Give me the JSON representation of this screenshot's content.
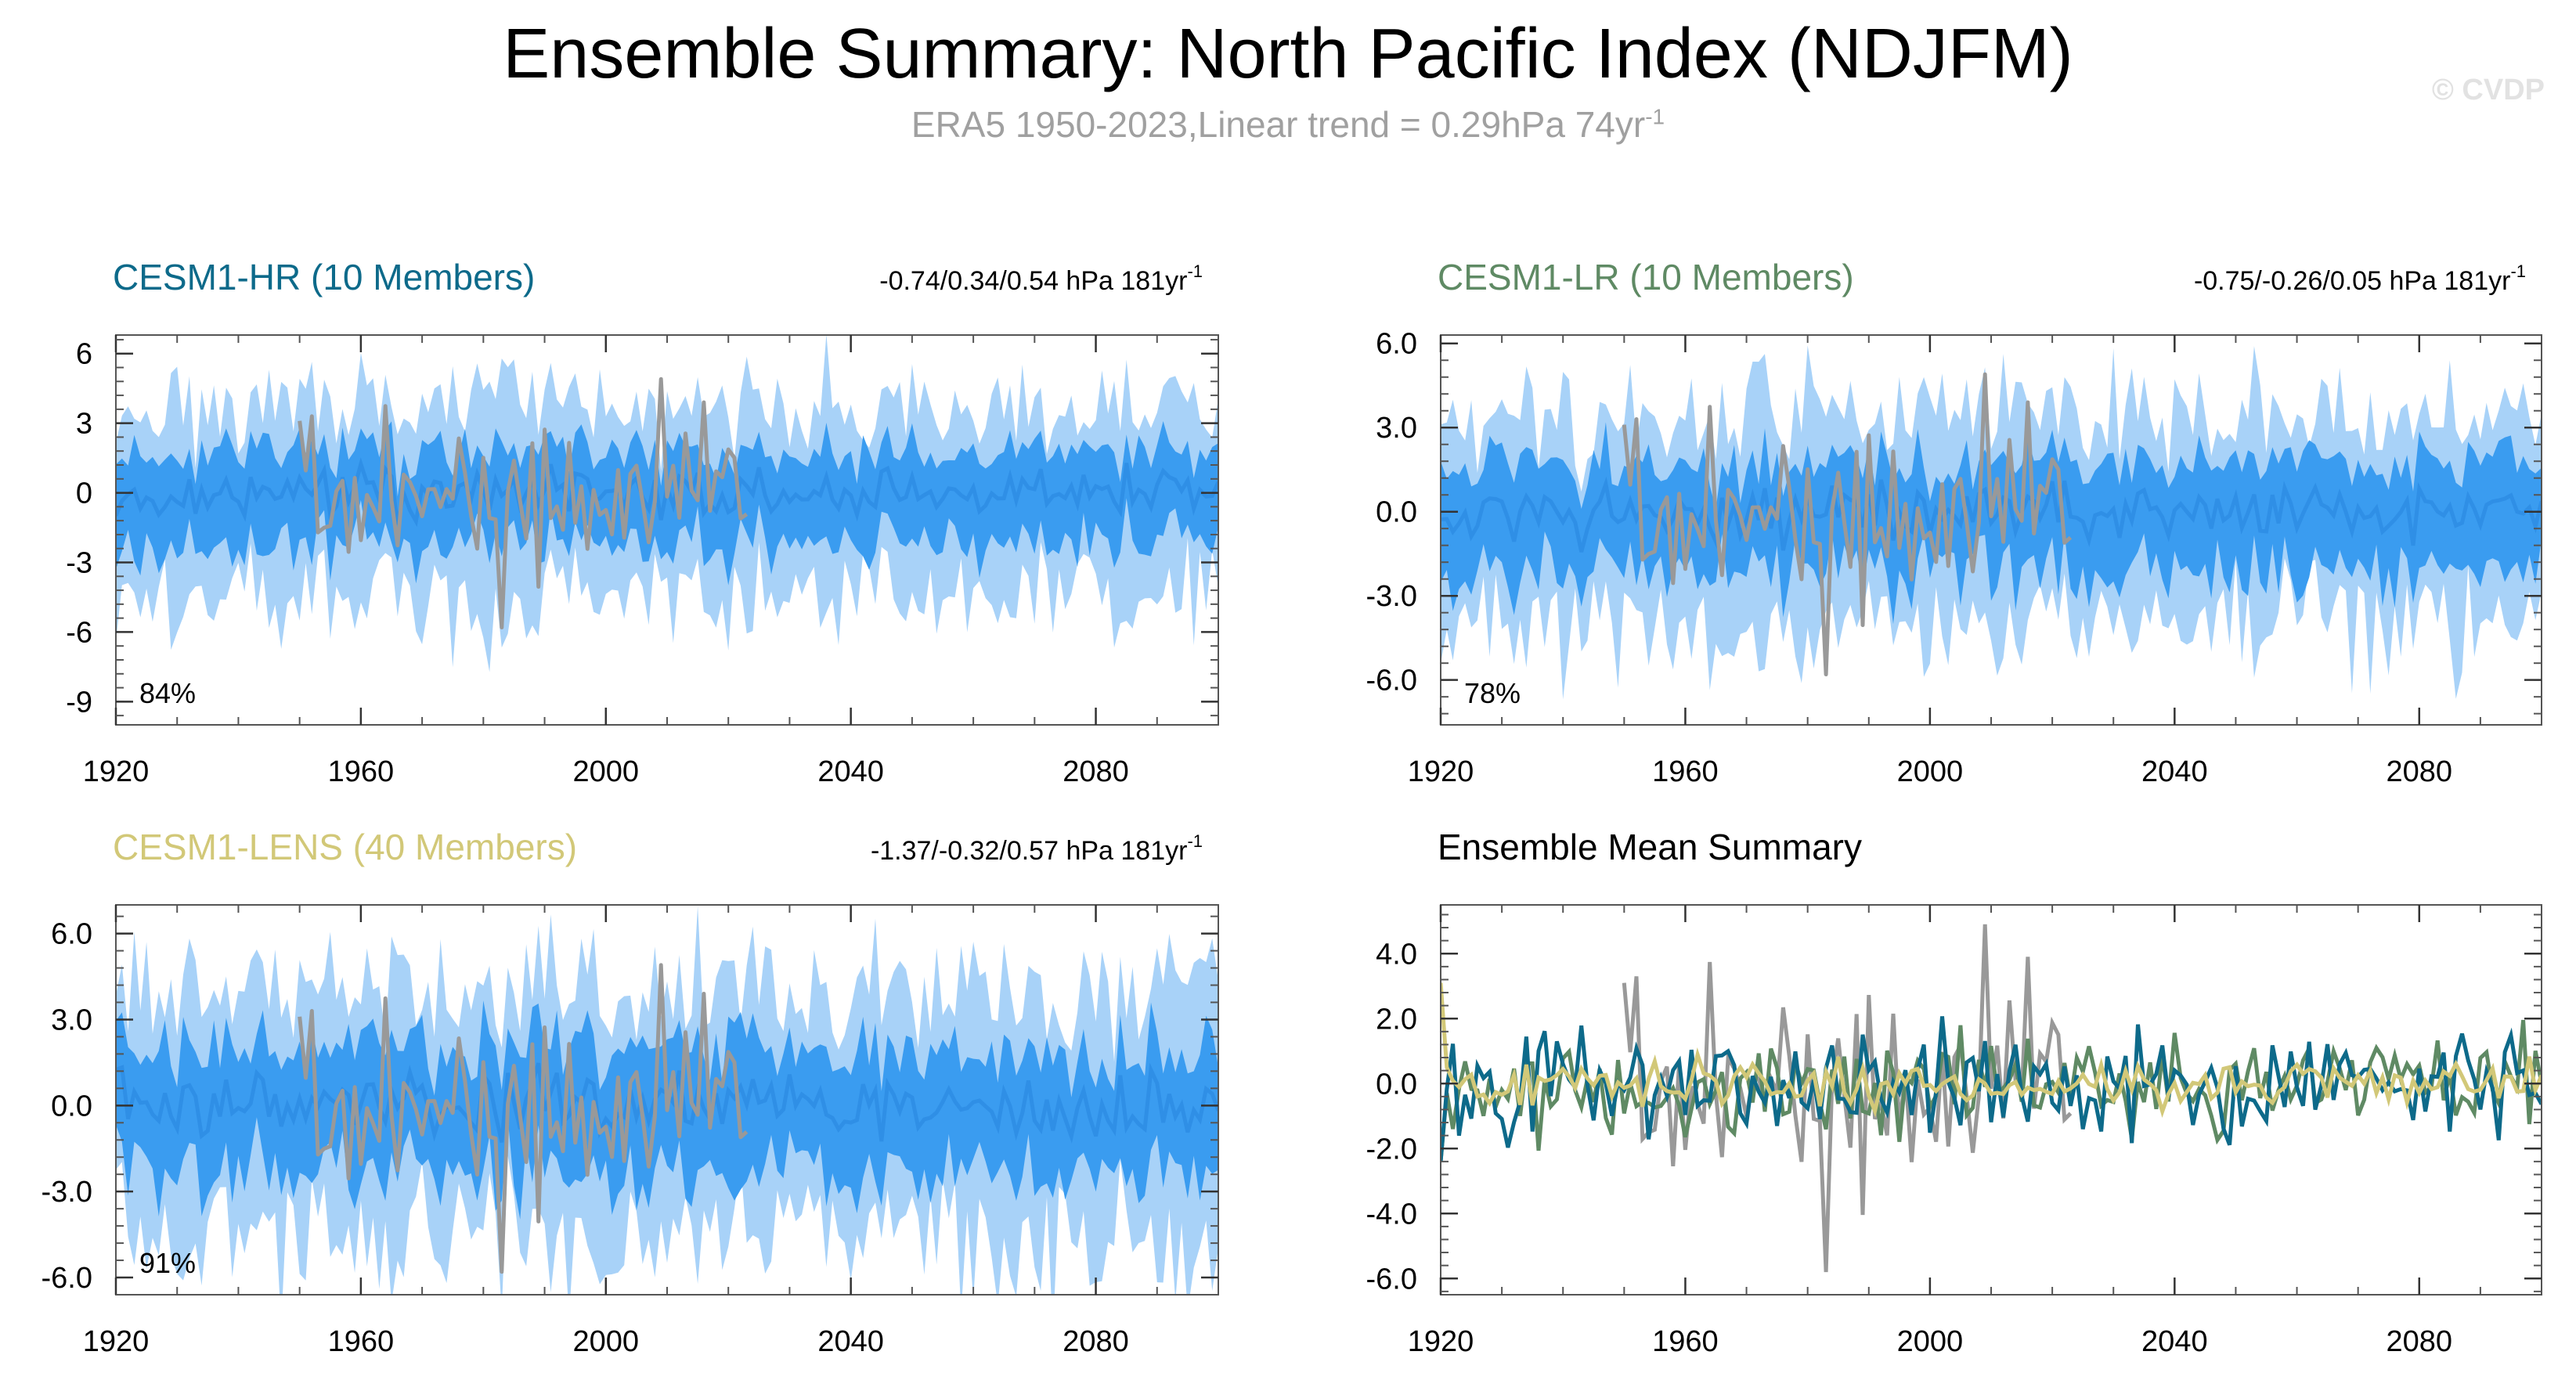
{
  "header": {
    "title": "Ensemble Summary: North Pacific Index (NDJFM)",
    "subtitle": "ERA5 1950-2023,Linear trend = 0.29hPa 74yr",
    "subtitle_sup": "-1",
    "watermark": "© CVDP"
  },
  "colors": {
    "band_outer": "#a8d2f8",
    "band_inner": "#3a9cf0",
    "ens_mean": "#2f8fe6",
    "obs": "#999999",
    "hr": "#0d6a8a",
    "lr": "#5f8a64",
    "lens": "#d2c878",
    "axis": "#222222"
  },
  "chart_data": [
    {
      "type": "area",
      "name": "CESM1-HR (10 Members)",
      "title": "CESM1-HR (10 Members)",
      "stats": "-0.74/0.34/0.54 hPa 181yr",
      "stats_sup": "-1",
      "title_color": "#0d6a8a",
      "percent": "84%",
      "xlim": [
        1920,
        2100
      ],
      "ylim": [
        -10,
        6.8
      ],
      "yticks": [
        6,
        3,
        0,
        -3,
        -6,
        -9
      ],
      "ytick_labels": [
        "6",
        "3",
        "0",
        "-3",
        "-6",
        "-9"
      ],
      "xticks": [
        1920,
        1960,
        2000,
        2040,
        2080
      ],
      "seed": 11,
      "amp": 1.0,
      "series": [
        "ensemble 10-90% range",
        "ensemble 25-75% range",
        "ensemble mean",
        "ERA5 1950-2023"
      ]
    },
    {
      "type": "area",
      "name": "CESM1-LR (10 Members)",
      "title": "CESM1-LR (10 Members)",
      "stats": "-0.75/-0.26/0.05 hPa 181yr",
      "stats_sup": "-1",
      "title_color": "#5f8a64",
      "percent": "78%",
      "xlim": [
        1920,
        2100
      ],
      "ylim": [
        -7.6,
        6.3
      ],
      "yticks": [
        6,
        3,
        0,
        -3,
        -6
      ],
      "ytick_labels": [
        "6.0",
        "3.0",
        "0.0",
        "-3.0",
        "-6.0"
      ],
      "xticks": [
        1920,
        1960,
        2000,
        2040,
        2080
      ],
      "seed": 23,
      "amp": 0.95,
      "series": [
        "ensemble 10-90% range",
        "ensemble 25-75% range",
        "ensemble mean",
        "ERA5 1950-2023"
      ]
    },
    {
      "type": "area",
      "name": "CESM1-LENS (40 Members)",
      "title": "CESM1-LENS (40 Members)",
      "stats": "-1.37/-0.32/0.57 hPa 181yr",
      "stats_sup": "-1",
      "title_color": "#d2c878",
      "percent": "91%",
      "xlim": [
        1920,
        2100
      ],
      "ylim": [
        -6.6,
        7.0
      ],
      "yticks": [
        6,
        3,
        0,
        -3,
        -6
      ],
      "ytick_labels": [
        "6.0",
        "3.0",
        "0.0",
        "-3.0",
        "-6.0"
      ],
      "xticks": [
        1920,
        1960,
        2000,
        2040,
        2080
      ],
      "seed": 37,
      "amp": 1.1,
      "series": [
        "ensemble 10-90% range",
        "ensemble 25-75% range",
        "ensemble mean",
        "ERA5 1950-2023"
      ]
    },
    {
      "type": "line",
      "name": "Ensemble Mean Summary",
      "title": "Ensemble Mean Summary",
      "stats": "",
      "stats_sup": "",
      "title_color": "#000000",
      "percent": "",
      "xlim": [
        1920,
        2100
      ],
      "ylim": [
        -6.5,
        5.5
      ],
      "yticks": [
        4,
        2,
        0,
        -2,
        -4,
        -6
      ],
      "ytick_labels": [
        "4.0",
        "2.0",
        "0.0",
        "-2.0",
        "-4.0",
        "-6.0"
      ],
      "xticks": [
        1920,
        1960,
        2000,
        2040,
        2080
      ],
      "seed": 53,
      "amp": 1.0,
      "series": [
        "CESM1-HR",
        "CESM1-LR",
        "CESM1-LENS",
        "ERA5"
      ]
    }
  ]
}
